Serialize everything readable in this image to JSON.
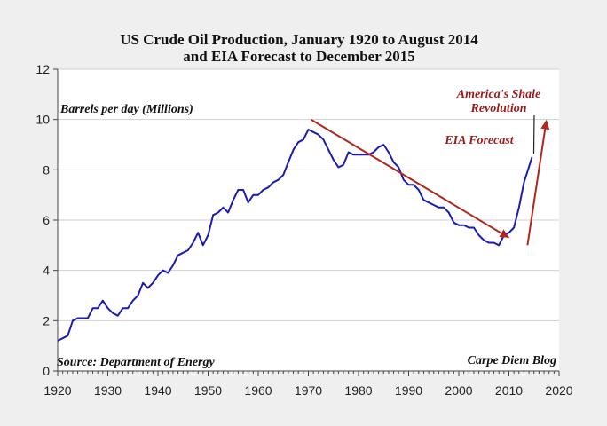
{
  "colors": {
    "background": "#efefef",
    "plot_background": "#ffffff",
    "series_line": "#1c1cb0",
    "trend_line": "#b3261e",
    "annotation_red": "#9b1c1c"
  },
  "chart_data": {
    "type": "line",
    "title_line1": "US Crude Oil Production, January 1920 to August 2014",
    "title_line2": "and EIA Forecast to December 2015",
    "ylabel": "Barrels per day (Millions)",
    "source": "Source: Department of Energy",
    "credit": "Carpe Diem Blog",
    "xlim": [
      1920,
      2020
    ],
    "ylim": [
      0,
      12
    ],
    "x_ticks": [
      "1920",
      "1930",
      "1940",
      "1950",
      "1960",
      "1970",
      "1980",
      "1990",
      "2000",
      "2010",
      "2020"
    ],
    "y_ticks": [
      "0",
      "2",
      "4",
      "6",
      "8",
      "10",
      "12"
    ],
    "grid": true,
    "series": [
      {
        "x": [
          1920,
          1922,
          1923,
          1924,
          1925,
          1926,
          1927,
          1928,
          1929,
          1930,
          1931,
          1932,
          1933,
          1934,
          1935,
          1936,
          1937,
          1938,
          1939,
          1940,
          1941,
          1942,
          1943,
          1944,
          1945,
          1946,
          1947,
          1948,
          1949,
          1950,
          1951,
          1952,
          1953,
          1954,
          1955,
          1956,
          1957,
          1958,
          1959,
          1960,
          1961,
          1962,
          1963,
          1964,
          1965,
          1966,
          1967,
          1968,
          1969,
          1970,
          1971,
          1972,
          1973,
          1974,
          1975,
          1976,
          1977,
          1978,
          1979,
          1980,
          1981,
          1982,
          1983,
          1984,
          1985,
          1986,
          1987,
          1988,
          1989,
          1990,
          1991,
          1992,
          1993,
          1994,
          1995,
          1996,
          1997,
          1998,
          1999,
          2000,
          2001,
          2002,
          2003,
          2004,
          2005,
          2006,
          2007,
          2008,
          2009,
          2010,
          2011,
          2012,
          2013,
          2014.6
        ],
        "values": [
          1.2,
          1.4,
          2.0,
          2.1,
          2.1,
          2.1,
          2.5,
          2.5,
          2.8,
          2.5,
          2.3,
          2.2,
          2.5,
          2.5,
          2.8,
          3.0,
          3.5,
          3.3,
          3.5,
          3.8,
          4.0,
          3.9,
          4.2,
          4.6,
          4.7,
          4.8,
          5.1,
          5.5,
          5.0,
          5.4,
          6.2,
          6.3,
          6.5,
          6.3,
          6.8,
          7.2,
          7.2,
          6.7,
          7.0,
          7.0,
          7.2,
          7.3,
          7.5,
          7.6,
          7.8,
          8.3,
          8.8,
          9.1,
          9.2,
          9.6,
          9.5,
          9.4,
          9.2,
          8.8,
          8.4,
          8.1,
          8.2,
          8.7,
          8.6,
          8.6,
          8.6,
          8.6,
          8.7,
          8.9,
          9.0,
          8.7,
          8.3,
          8.1,
          7.6,
          7.4,
          7.4,
          7.2,
          6.8,
          6.7,
          6.6,
          6.5,
          6.5,
          6.3,
          5.9,
          5.8,
          5.8,
          5.7,
          5.7,
          5.4,
          5.2,
          5.1,
          5.1,
          5.0,
          5.4,
          5.5,
          5.7,
          6.5,
          7.5,
          8.5
        ]
      }
    ],
    "trend_line": {
      "x": [
        1970.5,
        2010.0
      ],
      "values": [
        10.0,
        5.3
      ]
    },
    "forecast_arrow": {
      "x": [
        2013.7,
        2017.5
      ],
      "values": [
        5.0,
        10.0
      ]
    },
    "annotations": {
      "shale_line1": "America's Shale",
      "shale_line2": "Revolution",
      "eia": "EIA Forecast"
    }
  }
}
